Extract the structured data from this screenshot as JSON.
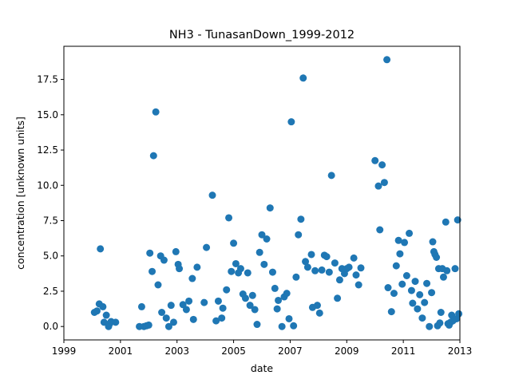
{
  "chart_data": {
    "type": "scatter",
    "title": "NH3 - TunasanDown_1999-2012",
    "xlabel": "date",
    "ylabel": "concentration [unknown units]",
    "xlim": [
      1999.0,
      2013.0
    ],
    "ylim": [
      -0.95,
      19.85
    ],
    "x_ticks": [
      1999,
      2001,
      2003,
      2005,
      2007,
      2009,
      2011,
      2013
    ],
    "y_ticks": [
      0.0,
      2.5,
      5.0,
      7.5,
      10.0,
      12.5,
      15.0,
      17.5
    ],
    "x_tick_labels": [
      "1999",
      "2001",
      "2003",
      "2005",
      "2007",
      "2009",
      "2011",
      "2013"
    ],
    "y_tick_labels": [
      "0.0",
      "2.5",
      "5.0",
      "7.5",
      "10.0",
      "12.5",
      "15.0",
      "17.5"
    ],
    "grid": false,
    "legend": "none",
    "marker_color": "#1f77b4",
    "points": [
      [
        2000.08,
        1.0
      ],
      [
        2000.17,
        1.1
      ],
      [
        2000.25,
        1.6
      ],
      [
        2000.29,
        5.5
      ],
      [
        2000.38,
        1.4
      ],
      [
        2000.42,
        0.3
      ],
      [
        2000.5,
        0.8
      ],
      [
        2000.58,
        0.0
      ],
      [
        2000.62,
        0.2
      ],
      [
        2000.67,
        0.35
      ],
      [
        2000.83,
        0.3
      ],
      [
        2001.67,
        0.0
      ],
      [
        2001.75,
        1.4
      ],
      [
        2001.83,
        0.0
      ],
      [
        2001.92,
        0.05
      ],
      [
        2002.0,
        0.1
      ],
      [
        2002.04,
        5.2
      ],
      [
        2002.12,
        3.9
      ],
      [
        2002.17,
        12.1
      ],
      [
        2002.25,
        15.2
      ],
      [
        2002.33,
        2.95
      ],
      [
        2002.42,
        5.0
      ],
      [
        2002.46,
        1.0
      ],
      [
        2002.54,
        4.7
      ],
      [
        2002.62,
        0.6
      ],
      [
        2002.71,
        0.0
      ],
      [
        2002.79,
        1.5
      ],
      [
        2002.88,
        0.3
      ],
      [
        2002.96,
        5.3
      ],
      [
        2003.04,
        4.4
      ],
      [
        2003.08,
        4.1
      ],
      [
        2003.21,
        1.55
      ],
      [
        2003.33,
        1.2
      ],
      [
        2003.42,
        1.8
      ],
      [
        2003.54,
        3.4
      ],
      [
        2003.58,
        0.5
      ],
      [
        2003.71,
        4.2
      ],
      [
        2003.96,
        1.7
      ],
      [
        2004.04,
        5.6
      ],
      [
        2004.25,
        9.3
      ],
      [
        2004.38,
        0.4
      ],
      [
        2004.46,
        1.8
      ],
      [
        2004.58,
        0.6
      ],
      [
        2004.62,
        1.3
      ],
      [
        2004.75,
        2.6
      ],
      [
        2004.83,
        7.7
      ],
      [
        2004.92,
        3.9
      ],
      [
        2005.0,
        5.9
      ],
      [
        2005.08,
        4.45
      ],
      [
        2005.17,
        3.8
      ],
      [
        2005.25,
        4.1
      ],
      [
        2005.33,
        2.3
      ],
      [
        2005.42,
        2.0
      ],
      [
        2005.5,
        3.8
      ],
      [
        2005.58,
        1.5
      ],
      [
        2005.67,
        2.2
      ],
      [
        2005.75,
        1.2
      ],
      [
        2005.83,
        0.15
      ],
      [
        2005.92,
        5.25
      ],
      [
        2006.0,
        6.5
      ],
      [
        2006.08,
        4.4
      ],
      [
        2006.17,
        6.2
      ],
      [
        2006.29,
        8.4
      ],
      [
        2006.38,
        3.85
      ],
      [
        2006.46,
        2.7
      ],
      [
        2006.54,
        1.25
      ],
      [
        2006.58,
        1.85
      ],
      [
        2006.71,
        0.0
      ],
      [
        2006.79,
        2.1
      ],
      [
        2006.88,
        2.35
      ],
      [
        2006.96,
        0.55
      ],
      [
        2007.04,
        14.5
      ],
      [
        2007.12,
        0.05
      ],
      [
        2007.21,
        3.5
      ],
      [
        2007.29,
        6.5
      ],
      [
        2007.38,
        7.6
      ],
      [
        2007.46,
        17.6
      ],
      [
        2007.54,
        4.6
      ],
      [
        2007.62,
        4.2
      ],
      [
        2007.75,
        5.1
      ],
      [
        2007.79,
        1.35
      ],
      [
        2007.88,
        3.95
      ],
      [
        2007.96,
        1.5
      ],
      [
        2008.04,
        0.95
      ],
      [
        2008.12,
        4.0
      ],
      [
        2008.21,
        5.05
      ],
      [
        2008.29,
        4.95
      ],
      [
        2008.38,
        3.85
      ],
      [
        2008.46,
        10.7
      ],
      [
        2008.58,
        4.5
      ],
      [
        2008.67,
        2.0
      ],
      [
        2008.75,
        3.3
      ],
      [
        2008.83,
        4.1
      ],
      [
        2008.92,
        3.75
      ],
      [
        2009.0,
        4.1
      ],
      [
        2009.08,
        4.2
      ],
      [
        2009.25,
        4.85
      ],
      [
        2009.33,
        3.65
      ],
      [
        2009.42,
        2.95
      ],
      [
        2009.5,
        4.15
      ],
      [
        2010.0,
        11.75
      ],
      [
        2010.12,
        9.95
      ],
      [
        2010.17,
        6.85
      ],
      [
        2010.25,
        11.45
      ],
      [
        2010.33,
        10.2
      ],
      [
        2010.42,
        18.9
      ],
      [
        2010.46,
        2.75
      ],
      [
        2010.58,
        1.05
      ],
      [
        2010.67,
        2.35
      ],
      [
        2010.75,
        4.3
      ],
      [
        2010.83,
        6.1
      ],
      [
        2010.88,
        5.15
      ],
      [
        2010.96,
        3.0
      ],
      [
        2011.04,
        5.95
      ],
      [
        2011.12,
        3.6
      ],
      [
        2011.21,
        6.6
      ],
      [
        2011.29,
        2.55
      ],
      [
        2011.33,
        1.65
      ],
      [
        2011.42,
        3.2
      ],
      [
        2011.5,
        1.25
      ],
      [
        2011.58,
        2.25
      ],
      [
        2011.67,
        0.6
      ],
      [
        2011.75,
        1.7
      ],
      [
        2011.83,
        3.05
      ],
      [
        2011.92,
        0.0
      ],
      [
        2012.0,
        2.4
      ],
      [
        2012.04,
        6.0
      ],
      [
        2012.08,
        5.3
      ],
      [
        2012.12,
        5.1
      ],
      [
        2012.17,
        4.9
      ],
      [
        2012.21,
        0.05
      ],
      [
        2012.25,
        4.1
      ],
      [
        2012.29,
        0.25
      ],
      [
        2012.33,
        1.0
      ],
      [
        2012.38,
        4.1
      ],
      [
        2012.42,
        3.5
      ],
      [
        2012.5,
        7.4
      ],
      [
        2012.54,
        3.95
      ],
      [
        2012.58,
        0.2
      ],
      [
        2012.62,
        0.1
      ],
      [
        2012.67,
        0.3
      ],
      [
        2012.71,
        0.8
      ],
      [
        2012.75,
        0.4
      ],
      [
        2012.83,
        4.1
      ],
      [
        2012.88,
        0.55
      ],
      [
        2012.92,
        7.55
      ],
      [
        2012.96,
        0.9
      ]
    ]
  }
}
